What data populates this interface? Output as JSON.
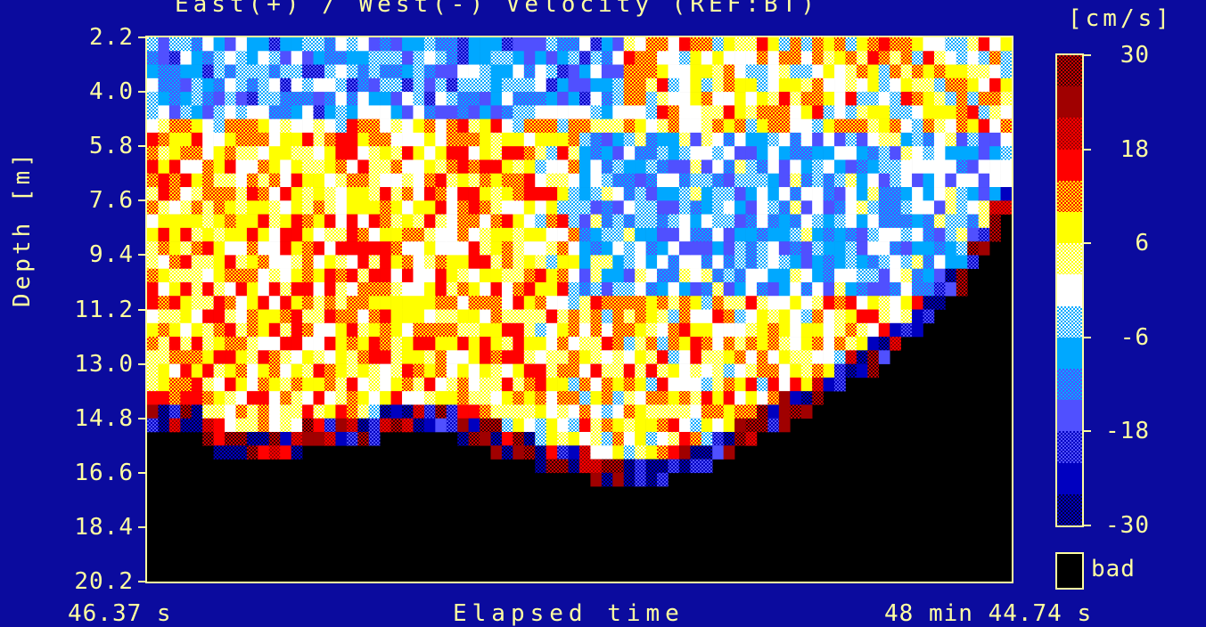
{
  "chart_data": {
    "type": "heatmap",
    "title": "East(+) / West(-) Velocity (REF:BT)",
    "colorbar_unit": "[cm/s]",
    "ylabel": "Depth [m]",
    "xlabel": "Elapsed time",
    "x_range_labels": [
      "46.37 s",
      "48 min 44.74 s"
    ],
    "y_tick_labels": [
      "2.2",
      "4.0",
      "5.8",
      "7.6",
      "9.4",
      "11.2",
      "13.0",
      "14.8",
      "16.6",
      "18.4",
      "20.2"
    ],
    "y_ticks": [
      2.2,
      4.0,
      5.8,
      7.6,
      9.4,
      11.2,
      13.0,
      14.8,
      16.6,
      18.4,
      20.2
    ],
    "ylim": [
      20.2,
      2.2
    ],
    "colorbar_tick_labels": [
      "30",
      "18",
      "6",
      "-6",
      "-18",
      "-30"
    ],
    "colorbar_range": [
      -30,
      30
    ],
    "colorbar_step": 4,
    "bad_label": "bad",
    "columns": 78,
    "depth_bins": 41,
    "bottom_depth_profile": [
      14.9,
      14.9,
      14.9,
      14.9,
      15.2,
      15.6,
      15.9,
      16.0,
      16.0,
      16.0,
      16.0,
      15.9,
      15.9,
      15.9,
      15.6,
      15.6,
      15.6,
      15.5,
      15.4,
      15.4,
      15.3,
      15.2,
      15.1,
      15.1,
      15.1,
      15.2,
      15.2,
      15.2,
      15.3,
      15.4,
      15.5,
      15.7,
      15.8,
      16.0,
      16.1,
      16.2,
      16.3,
      16.4,
      16.4,
      16.5,
      16.6,
      16.6,
      16.6,
      16.6,
      16.6,
      16.6,
      16.6,
      16.5,
      16.4,
      16.3,
      16.2,
      16.0,
      15.8,
      15.6,
      15.4,
      15.2,
      15.0,
      14.8,
      14.6,
      14.4,
      14.1,
      13.9,
      13.6,
      13.4,
      13.2,
      13.0,
      12.7,
      12.4,
      12.1,
      11.8,
      11.5,
      11.1,
      10.7,
      10.3,
      9.8,
      9.2,
      8.5,
      7.8
    ],
    "palette": {
      "bins": [
        {
          "value": 28,
          "colors": [
            "#3a0000",
            "#c80000"
          ],
          "pattern": "dither"
        },
        {
          "value": 24,
          "colors": [
            "#a00000"
          ]
        },
        {
          "value": 20,
          "colors": [
            "#a00000",
            "#ff0000"
          ],
          "pattern": "dither"
        },
        {
          "value": 16,
          "colors": [
            "#ff0000"
          ]
        },
        {
          "value": 12,
          "colors": [
            "#ff0000",
            "#ffff00"
          ],
          "pattern": "dither"
        },
        {
          "value": 8,
          "colors": [
            "#ffff00"
          ]
        },
        {
          "value": 4,
          "colors": [
            "#ffff00",
            "#ffffff"
          ],
          "pattern": "dither"
        },
        {
          "value": 0,
          "colors": [
            "#ffffff"
          ]
        },
        {
          "value": -4,
          "colors": [
            "#00a8ff",
            "#ffffff"
          ],
          "pattern": "dither"
        },
        {
          "value": -8,
          "colors": [
            "#00a8ff"
          ]
        },
        {
          "value": -12,
          "colors": [
            "#00a8ff",
            "#5050ff"
          ],
          "pattern": "dither"
        },
        {
          "value": -16,
          "colors": [
            "#5050ff"
          ]
        },
        {
          "value": -20,
          "colors": [
            "#5050ff",
            "#0000c0"
          ],
          "pattern": "dither"
        },
        {
          "value": -24,
          "colors": [
            "#0000c0"
          ]
        },
        {
          "value": -28,
          "colors": [
            "#0000c0",
            "#000040"
          ],
          "pattern": "dither"
        }
      ]
    },
    "field_model": {
      "description": "approximate E/W velocity field (cm/s)",
      "surface_west_band": {
        "depth_to": 4.6,
        "value": -9
      },
      "west_region": {
        "x_from": 0.5,
        "x_to": 1.0,
        "depth_from": 5.0,
        "depth_to": 10.5,
        "value": -7
      },
      "east_region": {
        "x_from": 0.0,
        "x_to": 0.45,
        "depth_from": 5.0,
        "depth_to": 14.0,
        "value": 8
      },
      "near_bottom_value": -26,
      "noise_amplitude": 10
    }
  }
}
